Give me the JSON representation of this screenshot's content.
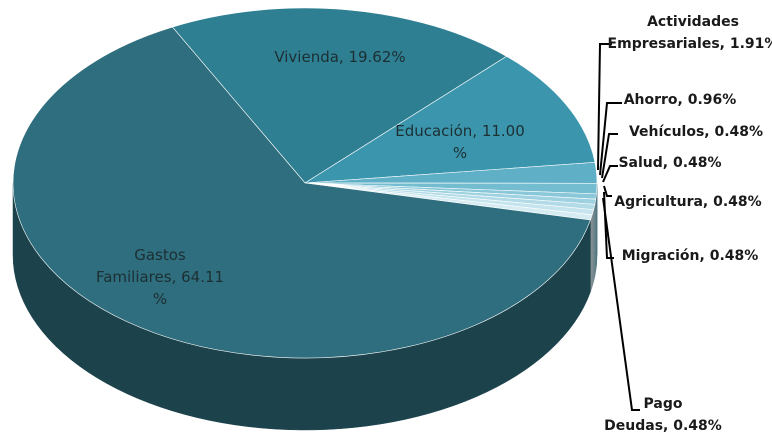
{
  "chart_data": {
    "type": "pie3d",
    "labels": [
      [
        "Vivienda, 19.62%"
      ],
      [
        "Educación, 11.00",
        "%"
      ],
      [
        "Actividades",
        "Empresariales, 1.91%"
      ],
      [
        "Ahorro, 0.96%"
      ],
      [
        "Vehículos, 0.48%"
      ],
      [
        "Salud, 0.48%"
      ],
      [
        "Agricultura, 0.48%"
      ],
      [
        "Migración, 0.48%"
      ],
      [
        "Pago",
        "Deudas, 0.48%"
      ],
      [
        "Gastos",
        "Familiares, 64.11",
        "%"
      ]
    ],
    "values": [
      19.62,
      11.0,
      1.91,
      0.96,
      0.48,
      0.48,
      0.48,
      0.48,
      0.48,
      64.11
    ],
    "colors": [
      "#2f7f93",
      "#3b96ad",
      "#5fb0c6",
      "#74bdd0",
      "#8ac8d9",
      "#9fd2e0",
      "#b3dbe7",
      "#c6e4ed",
      "#d6ecf3",
      "#2f6e7e"
    ]
  }
}
